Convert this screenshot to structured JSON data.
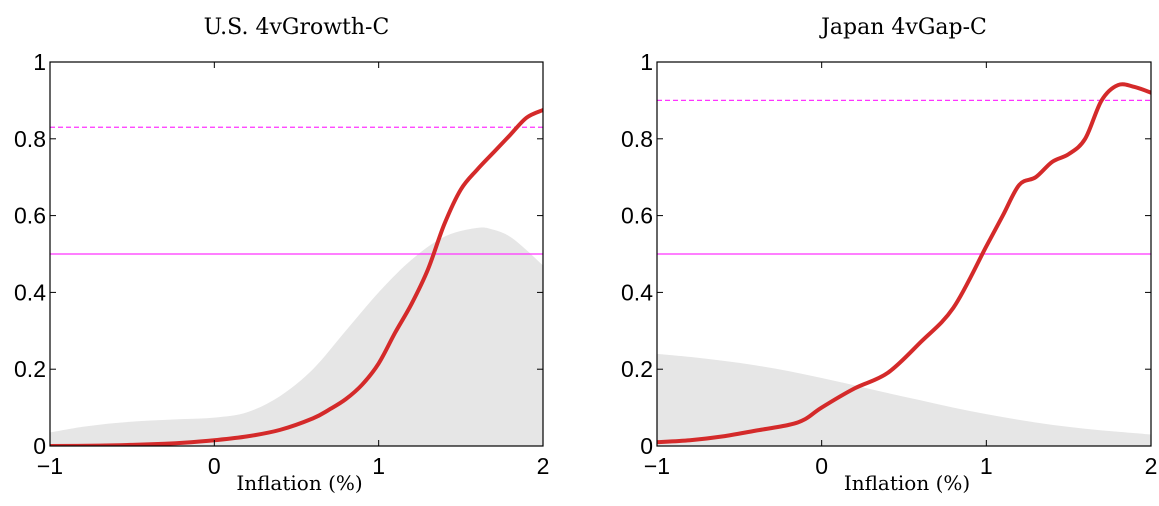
{
  "chart_data": [
    {
      "type": "line",
      "title": "U.S. 4vGrowth-C",
      "xlabel": "Inflation (%)",
      "ylabel": "",
      "xlim": [
        -1,
        2
      ],
      "ylim": [
        0,
        1
      ],
      "xticks": [
        "−1",
        "0",
        "1",
        "2"
      ],
      "xtick_values": [
        -1,
        0,
        1,
        2
      ],
      "yticks": [
        "0",
        "0.2",
        "0.4",
        "0.6",
        "0.8",
        "1"
      ],
      "ytick_values": [
        0,
        0.2,
        0.4,
        0.6,
        0.8,
        1
      ],
      "grid": false,
      "hlines": [
        {
          "y": 0.83,
          "style": "dashed",
          "color": "#ff33ff"
        },
        {
          "y": 0.5,
          "style": "solid",
          "color": "#ff33ff"
        }
      ],
      "series": [
        {
          "kind": "line",
          "color": "#d42a2a",
          "x": [
            -1,
            -0.7,
            -0.5,
            -0.3,
            -0.2,
            0,
            0.2,
            0.4,
            0.6,
            0.7,
            0.8,
            0.9,
            1.0,
            1.1,
            1.2,
            1.3,
            1.4,
            1.5,
            1.6,
            1.7,
            1.8,
            1.9,
            2.0
          ],
          "y": [
            0,
            0.001,
            0.003,
            0.006,
            0.008,
            0.015,
            0.025,
            0.042,
            0.072,
            0.095,
            0.122,
            0.16,
            0.215,
            0.295,
            0.37,
            0.46,
            0.578,
            0.668,
            0.72,
            0.765,
            0.81,
            0.855,
            0.875
          ]
        },
        {
          "kind": "area",
          "color": "#e6e6e6",
          "x": [
            -1,
            -0.8,
            -0.6,
            -0.4,
            -0.2,
            0,
            0.2,
            0.4,
            0.6,
            0.8,
            1.0,
            1.2,
            1.4,
            1.6,
            1.7,
            1.8,
            1.9,
            2.0
          ],
          "y": [
            0.035,
            0.05,
            0.06,
            0.066,
            0.07,
            0.074,
            0.088,
            0.13,
            0.2,
            0.3,
            0.4,
            0.485,
            0.545,
            0.568,
            0.563,
            0.545,
            0.51,
            0.47
          ]
        }
      ]
    },
    {
      "type": "line",
      "title": "Japan 4vGap-C",
      "xlabel": "Inflation (%)",
      "ylabel": "",
      "xlim": [
        -1,
        2
      ],
      "ylim": [
        0,
        1
      ],
      "xticks": [
        "−1",
        "0",
        "1",
        "2"
      ],
      "xtick_values": [
        -1,
        0,
        1,
        2
      ],
      "yticks": [
        "0",
        "0.2",
        "0.4",
        "0.6",
        "0.8",
        "1"
      ],
      "ytick_values": [
        0,
        0.2,
        0.4,
        0.6,
        0.8,
        1
      ],
      "grid": false,
      "hlines": [
        {
          "y": 0.9,
          "style": "dashed",
          "color": "#ff33ff"
        },
        {
          "y": 0.5,
          "style": "solid",
          "color": "#ff33ff"
        }
      ],
      "series": [
        {
          "kind": "line",
          "color": "#d42a2a",
          "x": [
            -1,
            -0.8,
            -0.6,
            -0.4,
            -0.2,
            -0.1,
            0,
            0.2,
            0.4,
            0.6,
            0.8,
            1.0,
            1.1,
            1.2,
            1.3,
            1.4,
            1.5,
            1.6,
            1.7,
            1.8,
            1.9,
            2.0
          ],
          "y": [
            0.01,
            0.015,
            0.025,
            0.04,
            0.055,
            0.07,
            0.1,
            0.15,
            0.19,
            0.27,
            0.36,
            0.52,
            0.6,
            0.68,
            0.7,
            0.74,
            0.76,
            0.8,
            0.9,
            0.94,
            0.935,
            0.92
          ]
        },
        {
          "kind": "area",
          "color": "#e6e6e6",
          "x": [
            -1,
            -0.8,
            -0.6,
            -0.4,
            -0.2,
            0,
            0.2,
            0.4,
            0.6,
            0.8,
            1.0,
            1.2,
            1.4,
            1.6,
            1.8,
            2.0
          ],
          "y": [
            0.24,
            0.232,
            0.222,
            0.21,
            0.195,
            0.177,
            0.158,
            0.138,
            0.119,
            0.1,
            0.083,
            0.068,
            0.055,
            0.045,
            0.037,
            0.03
          ]
        }
      ]
    }
  ]
}
